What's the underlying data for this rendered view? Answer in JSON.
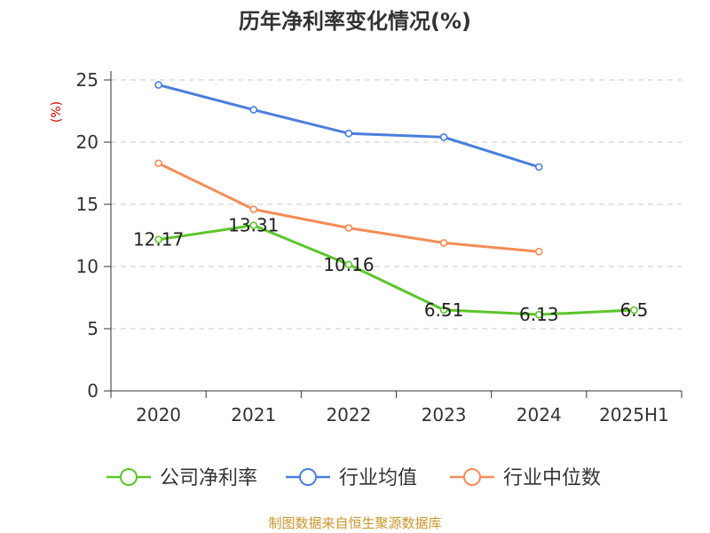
{
  "chart_data": {
    "type": "line",
    "title": "历年净利率变化情况(%)",
    "ylabel": "(%)",
    "categories": [
      "2020",
      "2021",
      "2022",
      "2023",
      "2024",
      "2025H1"
    ],
    "ylim": [
      0,
      25
    ],
    "yticks": [
      0,
      5,
      10,
      15,
      20,
      25
    ],
    "grid": true,
    "legend_position": "bottom",
    "series": [
      {
        "name": "公司净利率",
        "color": "#5cc52b",
        "values": [
          12.17,
          13.31,
          10.16,
          6.51,
          6.13,
          6.5
        ],
        "labels": [
          "12.17",
          "13.31",
          "10.16",
          "6.51",
          "6.13",
          "6.5"
        ]
      },
      {
        "name": "行业均值",
        "color": "#4a7fdc",
        "values": [
          24.6,
          22.6,
          20.7,
          20.4,
          18.0,
          null
        ]
      },
      {
        "name": "行业中位数",
        "color": "#f48c57",
        "values": [
          18.3,
          14.6,
          13.1,
          11.9,
          11.2,
          null
        ]
      }
    ],
    "ylabel_color": "#cc0000"
  },
  "source": {
    "text": "制图数据来自恒生聚源数据库",
    "color": "#c8962d"
  }
}
